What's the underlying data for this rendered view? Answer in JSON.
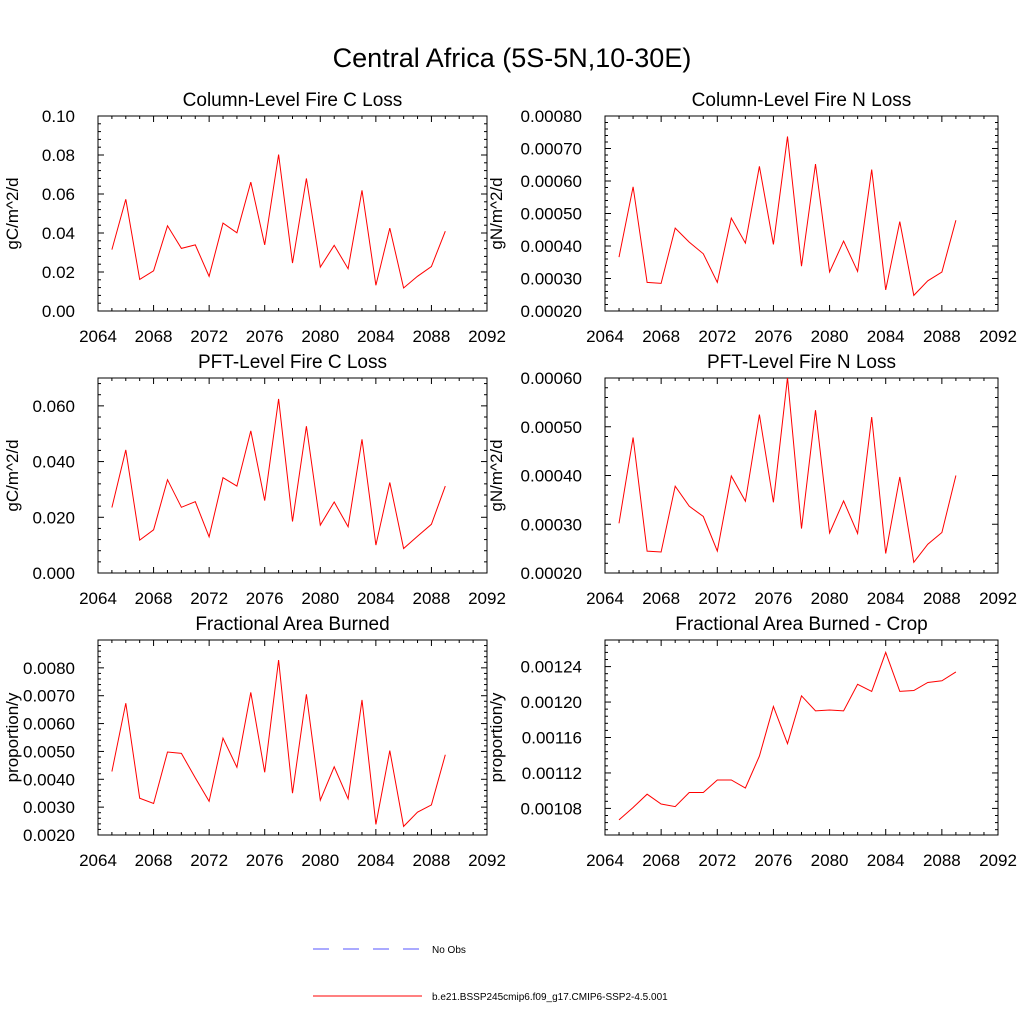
{
  "figure": {
    "title": "Central Africa (5S-5N,10-30E)"
  },
  "legend": {
    "entries": [
      {
        "label": "No Obs",
        "color": "#5555ff",
        "style": "dashed"
      },
      {
        "label": "b.e21.BSSP245cmip6.f09_g17.CMIP6-SSP2-4.5.001",
        "color": "#ff0000",
        "style": "solid"
      }
    ]
  },
  "chart_data": [
    {
      "type": "line",
      "title": "Column-Level Fire C Loss",
      "ylabel": "gC/m^2/d",
      "xlim": [
        2064,
        2092
      ],
      "ylim": [
        0.0,
        0.1
      ],
      "xticks": [
        "2064",
        "2068",
        "2072",
        "2076",
        "2080",
        "2084",
        "2088",
        "2092"
      ],
      "yticks": [
        "0.00",
        "0.02",
        "0.04",
        "0.06",
        "0.08",
        "0.10"
      ],
      "x": [
        2065,
        2066,
        2067,
        2068,
        2069,
        2070,
        2071,
        2072,
        2073,
        2074,
        2075,
        2076,
        2077,
        2078,
        2079,
        2080,
        2081,
        2082,
        2083,
        2084,
        2085,
        2086,
        2087,
        2088,
        2089
      ],
      "series": [
        {
          "color": "#ff0000",
          "values": [
            0.0315,
            0.0573,
            0.0162,
            0.0206,
            0.0437,
            0.0321,
            0.0339,
            0.0178,
            0.0451,
            0.0401,
            0.0661,
            0.0339,
            0.0802,
            0.0246,
            0.068,
            0.0225,
            0.0337,
            0.0217,
            0.0619,
            0.0132,
            0.0425,
            0.0118,
            0.0178,
            0.0228,
            0.0409
          ]
        }
      ]
    },
    {
      "type": "line",
      "title": "Column-Level Fire N Loss",
      "ylabel": "gN/m^2/d",
      "xlim": [
        2064,
        2092
      ],
      "ylim": [
        0.0002,
        0.0008
      ],
      "xticks": [
        "2064",
        "2068",
        "2072",
        "2076",
        "2080",
        "2084",
        "2088",
        "2092"
      ],
      "yticks": [
        "0.00020",
        "0.00030",
        "0.00040",
        "0.00050",
        "0.00060",
        "0.00070",
        "0.00080"
      ],
      "x": [
        2065,
        2066,
        2067,
        2068,
        2069,
        2070,
        2071,
        2072,
        2073,
        2074,
        2075,
        2076,
        2077,
        2078,
        2079,
        2080,
        2081,
        2082,
        2083,
        2084,
        2085,
        2086,
        2087,
        2088,
        2089
      ],
      "series": [
        {
          "color": "#ff0000",
          "values": [
            0.000366,
            0.000582,
            0.000288,
            0.000285,
            0.000455,
            0.000412,
            0.000376,
            0.000288,
            0.000486,
            0.000409,
            0.000645,
            0.000405,
            0.000737,
            0.000338,
            0.000652,
            0.00032,
            0.000415,
            0.000322,
            0.000635,
            0.000265,
            0.000475,
            0.000248,
            0.000293,
            0.00032,
            0.000479
          ]
        }
      ]
    },
    {
      "type": "line",
      "title": "PFT-Level Fire C Loss",
      "ylabel": "gC/m^2/d",
      "xlim": [
        2064,
        2092
      ],
      "ylim": [
        0.0,
        0.07
      ],
      "xticks": [
        "2064",
        "2068",
        "2072",
        "2076",
        "2080",
        "2084",
        "2088",
        "2092"
      ],
      "yticks": [
        "0.000",
        "0.020",
        "0.040",
        "0.060"
      ],
      "x": [
        2065,
        2066,
        2067,
        2068,
        2069,
        2070,
        2071,
        2072,
        2073,
        2074,
        2075,
        2076,
        2077,
        2078,
        2079,
        2080,
        2081,
        2082,
        2083,
        2084,
        2085,
        2086,
        2087,
        2088,
        2089
      ],
      "series": [
        {
          "color": "#ff0000",
          "values": [
            0.0235,
            0.0442,
            0.0118,
            0.0155,
            0.0335,
            0.0236,
            0.0256,
            0.013,
            0.0342,
            0.0312,
            0.051,
            0.026,
            0.0625,
            0.0185,
            0.0527,
            0.0172,
            0.0255,
            0.0166,
            0.048,
            0.01,
            0.0325,
            0.0088,
            0.0132,
            0.0175,
            0.0312
          ]
        }
      ]
    },
    {
      "type": "line",
      "title": "PFT-Level Fire N Loss",
      "ylabel": "gN/m^2/d",
      "xlim": [
        2064,
        2092
      ],
      "ylim": [
        0.0002,
        0.0006
      ],
      "xticks": [
        "2064",
        "2068",
        "2072",
        "2076",
        "2080",
        "2084",
        "2088",
        "2092"
      ],
      "yticks": [
        "0.00020",
        "0.00030",
        "0.00040",
        "0.00050",
        "0.00060"
      ],
      "x": [
        2065,
        2066,
        2067,
        2068,
        2069,
        2070,
        2071,
        2072,
        2073,
        2074,
        2075,
        2076,
        2077,
        2078,
        2079,
        2080,
        2081,
        2082,
        2083,
        2084,
        2085,
        2086,
        2087,
        2088,
        2089
      ],
      "series": [
        {
          "color": "#ff0000",
          "values": [
            0.000302,
            0.000478,
            0.000245,
            0.000243,
            0.000378,
            0.000337,
            0.000316,
            0.000245,
            0.000399,
            0.000347,
            0.000525,
            0.000345,
            0.000601,
            0.000291,
            0.000534,
            0.000282,
            0.000348,
            0.000281,
            0.00052,
            0.00024,
            0.000397,
            0.000222,
            0.000259,
            0.000283,
            0.0004
          ]
        }
      ]
    },
    {
      "type": "line",
      "title": "Fractional Area Burned",
      "ylabel": "proportion/y",
      "xlim": [
        2064,
        2092
      ],
      "ylim": [
        0.002,
        0.009
      ],
      "xticks": [
        "2064",
        "2068",
        "2072",
        "2076",
        "2080",
        "2084",
        "2088",
        "2092"
      ],
      "yticks": [
        "0.0020",
        "0.0030",
        "0.0040",
        "0.0050",
        "0.0060",
        "0.0070",
        "0.0080"
      ],
      "x": [
        2065,
        2066,
        2067,
        2068,
        2069,
        2070,
        2071,
        2072,
        2073,
        2074,
        2075,
        2076,
        2077,
        2078,
        2079,
        2080,
        2081,
        2082,
        2083,
        2084,
        2085,
        2086,
        2087,
        2088,
        2089
      ],
      "series": [
        {
          "color": "#ff0000",
          "values": [
            0.00428,
            0.00673,
            0.00332,
            0.00313,
            0.00498,
            0.00493,
            0.00405,
            0.00321,
            0.00548,
            0.00443,
            0.00712,
            0.00425,
            0.00828,
            0.0035,
            0.00705,
            0.00325,
            0.00445,
            0.0033,
            0.00685,
            0.00238,
            0.00503,
            0.00231,
            0.00282,
            0.00308,
            0.00488
          ]
        }
      ]
    },
    {
      "type": "line",
      "title": "Fractional Area Burned - Crop",
      "ylabel": "proportion/y",
      "xlim": [
        2064,
        2092
      ],
      "ylim": [
        0.00105,
        0.00127
      ],
      "xticks": [
        "2064",
        "2068",
        "2072",
        "2076",
        "2080",
        "2084",
        "2088",
        "2092"
      ],
      "yticks": [
        "0.00108",
        "0.00112",
        "0.00116",
        "0.00120",
        "0.00124"
      ],
      "x": [
        2065,
        2066,
        2067,
        2068,
        2069,
        2070,
        2071,
        2072,
        2073,
        2074,
        2075,
        2076,
        2077,
        2078,
        2079,
        2080,
        2081,
        2082,
        2083,
        2084,
        2085,
        2086,
        2087,
        2088,
        2089
      ],
      "series": [
        {
          "color": "#ff0000",
          "values": [
            0.001067,
            0.001081,
            0.001096,
            0.001085,
            0.001082,
            0.001098,
            0.001098,
            0.001112,
            0.001112,
            0.001103,
            0.001139,
            0.001195,
            0.001153,
            0.001207,
            0.00119,
            0.001191,
            0.00119,
            0.00122,
            0.001212,
            0.001256,
            0.001212,
            0.001213,
            0.001222,
            0.001224,
            0.001234
          ]
        }
      ]
    }
  ]
}
